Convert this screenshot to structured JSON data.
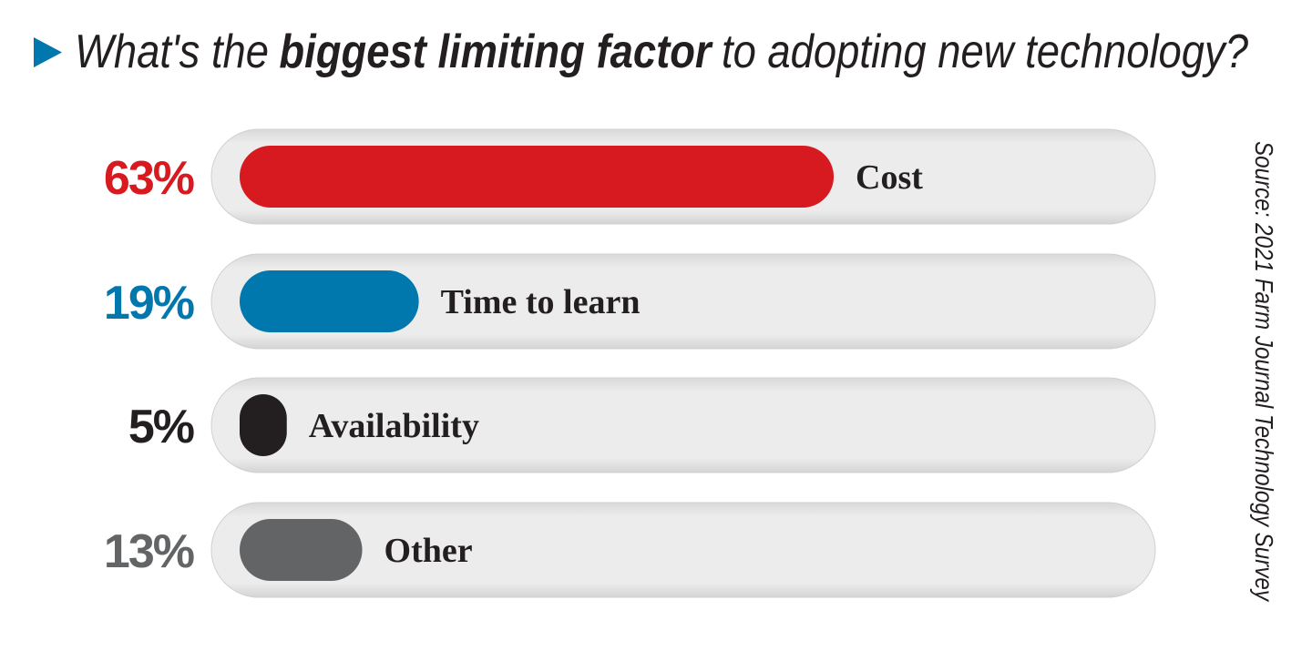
{
  "chart_data": {
    "type": "bar",
    "title": [
      "What's the",
      "biggest limiting factor",
      "to adopting new technology?"
    ],
    "categories": [
      "Cost",
      "Time to learn",
      "Availability",
      "Other"
    ],
    "values": [
      63,
      19,
      5,
      13
    ],
    "value_labels": [
      "63%",
      "19%",
      "5%",
      "13%"
    ],
    "colors": [
      "#d71920",
      "#0077ad",
      "#231f20",
      "#636466"
    ],
    "source": "Source: 2021 Farm Journal Technology Survey"
  }
}
